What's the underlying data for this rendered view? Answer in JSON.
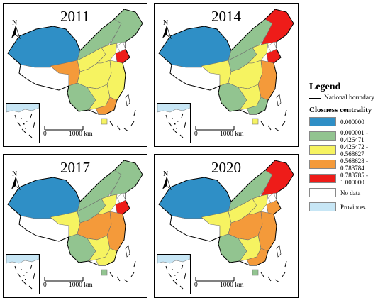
{
  "colors": {
    "c0": "#2f8fc6",
    "c1": "#92c490",
    "c2": "#f6f361",
    "c3": "#f49a3a",
    "c4": "#ee1c19",
    "nodata": "#ffffff",
    "provinces": "#c7e6f5",
    "background": "#ffffff"
  },
  "panels": [
    {
      "year": "2011",
      "scale_label_zero": "0",
      "scale_label_end": "1000 km",
      "north_icon": "north-arrow-icon"
    },
    {
      "year": "2014",
      "scale_label_zero": "0",
      "scale_label_end": "1000 km",
      "north_icon": "north-arrow-icon"
    },
    {
      "year": "2017",
      "scale_label_zero": "0",
      "scale_label_end": "1000 km",
      "north_icon": "north-arrow-icon"
    },
    {
      "year": "2020",
      "scale_label_zero": "0",
      "scale_label_end": "1000 km",
      "north_icon": "north-arrow-icon"
    }
  ],
  "legend": {
    "title": "Legend",
    "boundary_label": "National boundary",
    "subtitle": "Closness centrality",
    "items": [
      {
        "label": "0.000000",
        "color": "#2f8fc6"
      },
      {
        "label": "0.000001 - 0.426471",
        "color": "#92c490"
      },
      {
        "label": "0.426472 - 0.568627",
        "color": "#f6f361"
      },
      {
        "label": "0.568628 - 0.783784",
        "color": "#f49a3a"
      },
      {
        "label": "0.783785 - 1.000000",
        "color": "#ee1c19"
      },
      {
        "label": "No data",
        "color": "#ffffff"
      },
      {
        "label": "Provinces",
        "color": "#c7e6f5"
      }
    ]
  },
  "maps": [
    {
      "xinjiang": "c0",
      "tibet": "nodata",
      "qinghai": "c3",
      "gansu": "c2",
      "inner_mongolia": "c1",
      "northeast": "c1",
      "shandong": "c4",
      "north_china": "c2",
      "central": "c2",
      "east": "c2",
      "southwest": "c1",
      "south": "c2",
      "guangdong": "c3",
      "hainan": "c2"
    },
    {
      "xinjiang": "c0",
      "tibet": "nodata",
      "qinghai": "c2",
      "gansu": "c1",
      "inner_mongolia": "c1",
      "northeast": "c4",
      "shandong": "c4",
      "north_china": "c2",
      "central": "c2",
      "east": "c3",
      "southwest": "c1",
      "south": "c2",
      "guangdong": "c1",
      "hainan": "c2"
    },
    {
      "xinjiang": "c0",
      "tibet": "nodata",
      "qinghai": "c2",
      "gansu": "c1",
      "inner_mongolia": "c1",
      "northeast": "c1",
      "shandong": "c4",
      "north_china": "c2",
      "central": "c3",
      "east": "c3",
      "southwest": "c1",
      "south": "c2",
      "guangdong": "c2",
      "hainan": "c1"
    },
    {
      "xinjiang": "c0",
      "tibet": "nodata",
      "qinghai": "c2",
      "gansu": "c2",
      "inner_mongolia": "c1",
      "northeast": "c4",
      "shandong": "c3",
      "north_china": "c2",
      "central": "c3",
      "east": "c3",
      "southwest": "c1",
      "south": "c2",
      "guangdong": "c3",
      "hainan": "c1"
    }
  ]
}
